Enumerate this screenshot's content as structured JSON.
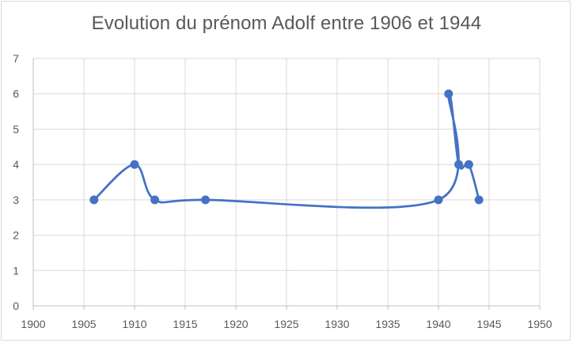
{
  "chart_data": {
    "type": "scatter",
    "title": "Evolution du prénom Adolf entre 1906 et 1944",
    "xlabel": "",
    "ylabel": "",
    "xlim": [
      1900,
      1950
    ],
    "ylim": [
      0,
      7
    ],
    "x_ticks": [
      "1900",
      "1905",
      "1910",
      "1915",
      "1920",
      "1925",
      "1930",
      "1935",
      "1940",
      "1945",
      "1950"
    ],
    "y_ticks": [
      "0",
      "1",
      "2",
      "3",
      "4",
      "5",
      "6",
      "7"
    ],
    "grid": true,
    "legend": "none",
    "smooth_line": true,
    "series": [
      {
        "color": "#4472c4",
        "points": [
          {
            "x": 1906,
            "y": 3
          },
          {
            "x": 1910,
            "y": 4
          },
          {
            "x": 1912,
            "y": 3
          },
          {
            "x": 1917,
            "y": 3
          },
          {
            "x": 1940,
            "y": 3
          },
          {
            "x": 1941,
            "y": 6
          },
          {
            "x": 1942,
            "y": 4
          },
          {
            "x": 1943,
            "y": 4
          },
          {
            "x": 1944,
            "y": 3
          }
        ]
      }
    ]
  }
}
